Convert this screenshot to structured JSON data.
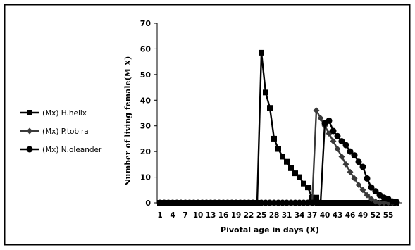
{
  "chart_data": {
    "type": "line",
    "title": "",
    "xlabel": "Pivotal age in days (X)",
    "ylabel": "Number of living female(M X)",
    "ylim": [
      0,
      70
    ],
    "yticks": [
      0,
      10,
      20,
      30,
      40,
      50,
      60,
      70
    ],
    "x": [
      1,
      2,
      3,
      4,
      5,
      6,
      7,
      8,
      9,
      10,
      11,
      12,
      13,
      14,
      15,
      16,
      17,
      18,
      19,
      20,
      21,
      22,
      23,
      24,
      25,
      26,
      27,
      28,
      29,
      30,
      31,
      32,
      33,
      34,
      35,
      36,
      37,
      38,
      39,
      40,
      41,
      42,
      43,
      44,
      45,
      46,
      47,
      48,
      49,
      50,
      51,
      52,
      53,
      54,
      55,
      56,
      57
    ],
    "xticks": [
      1,
      4,
      7,
      10,
      13,
      16,
      19,
      22,
      25,
      28,
      31,
      34,
      37,
      40,
      43,
      46,
      49,
      52,
      55
    ],
    "legend_position": "left",
    "grid": false,
    "series": [
      {
        "name": "(Mx) H.helix",
        "color": "#000000",
        "marker": "square",
        "values": [
          0,
          0,
          0,
          0,
          0,
          0,
          0,
          0,
          0,
          0,
          0,
          0,
          0,
          0,
          0,
          0,
          0,
          0,
          0,
          0,
          0,
          0,
          0,
          0,
          58.5,
          43,
          37,
          25,
          21,
          18,
          16,
          13.5,
          11.5,
          10,
          7.5,
          6,
          2,
          2,
          0,
          0,
          0,
          0,
          0,
          0,
          0,
          0,
          0,
          0,
          0,
          0,
          0,
          0,
          0,
          0,
          0,
          0,
          0
        ]
      },
      {
        "name": "(Mx) P.tobira",
        "color": "#3a3a3a",
        "marker": "diamond",
        "values": [
          0,
          0,
          0,
          0,
          0,
          0,
          0,
          0,
          0,
          0,
          0,
          0,
          0,
          0,
          0,
          0,
          0,
          0,
          0,
          0,
          0,
          0,
          0,
          0,
          0,
          0,
          0,
          0,
          0,
          0,
          0,
          0,
          0,
          0,
          0,
          0,
          0,
          36,
          33,
          30,
          27,
          24,
          21,
          18,
          15,
          12,
          9.5,
          7,
          5,
          3,
          1.5,
          0.5,
          0,
          0,
          0,
          0,
          0
        ]
      },
      {
        "name": "(Mx) N.oleander",
        "color": "#000000",
        "marker": "circle",
        "values": [
          0,
          0,
          0,
          0,
          0,
          0,
          0,
          0,
          0,
          0,
          0,
          0,
          0,
          0,
          0,
          0,
          0,
          0,
          0,
          0,
          0,
          0,
          0,
          0,
          0,
          0,
          0,
          0,
          0,
          0,
          0,
          0,
          0,
          0,
          0,
          0,
          0,
          0,
          0,
          31,
          32,
          28,
          26,
          24,
          22.5,
          20,
          18.5,
          16,
          14,
          9.5,
          6,
          4.5,
          3,
          2,
          1.5,
          0.5,
          0.3
        ]
      }
    ]
  }
}
